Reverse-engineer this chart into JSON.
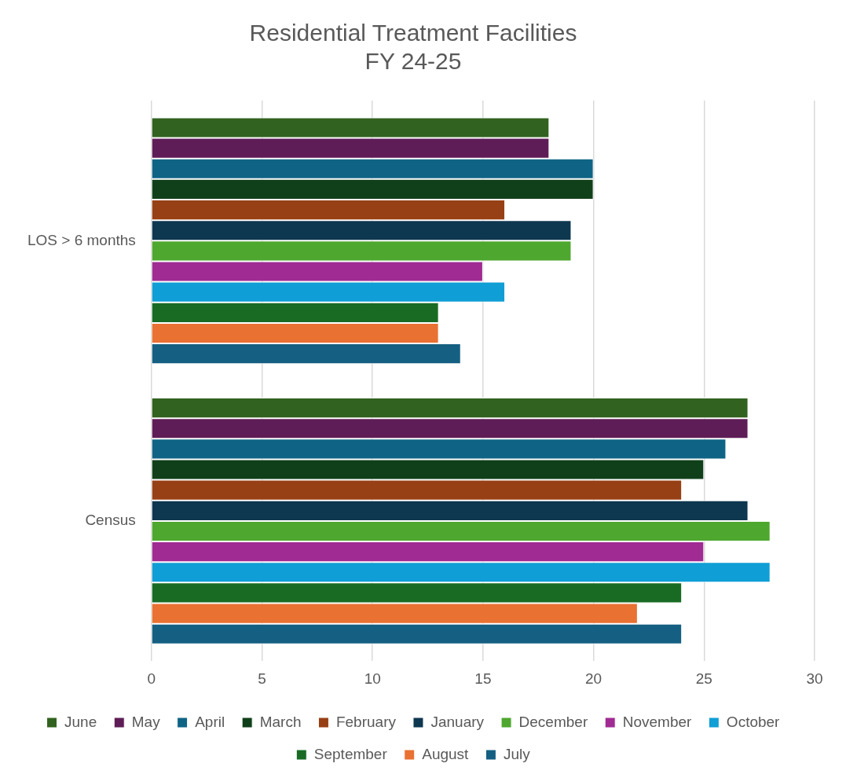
{
  "chart_data": {
    "type": "bar",
    "orientation": "horizontal",
    "title": "Residential Treatment Facilities\nFY 24-25",
    "categories": [
      "LOS > 6 months",
      "Census"
    ],
    "series": [
      {
        "name": "June",
        "color": "#31621f",
        "values": [
          18,
          27
        ]
      },
      {
        "name": "May",
        "color": "#5e1d56",
        "values": [
          18,
          27
        ]
      },
      {
        "name": "April",
        "color": "#0f6485",
        "values": [
          20,
          26
        ]
      },
      {
        "name": "March",
        "color": "#10401a",
        "values": [
          20,
          25
        ]
      },
      {
        "name": "February",
        "color": "#974015",
        "values": [
          16,
          24
        ]
      },
      {
        "name": "January",
        "color": "#0e3750",
        "values": [
          19,
          27
        ]
      },
      {
        "name": "December",
        "color": "#4ea72e",
        "values": [
          19,
          28
        ]
      },
      {
        "name": "November",
        "color": "#a02b93",
        "values": [
          15,
          25
        ]
      },
      {
        "name": "October",
        "color": "#0f9ed5",
        "values": [
          16,
          28
        ]
      },
      {
        "name": "September",
        "color": "#196b24",
        "values": [
          13,
          24
        ]
      },
      {
        "name": "August",
        "color": "#e97132",
        "values": [
          13,
          22
        ]
      },
      {
        "name": "July",
        "color": "#156082",
        "values": [
          14,
          24
        ]
      }
    ],
    "xlim": [
      0,
      30
    ],
    "xticks": [
      0,
      5,
      10,
      15,
      20,
      25,
      30
    ],
    "grid": "x",
    "legend": "bottom"
  }
}
